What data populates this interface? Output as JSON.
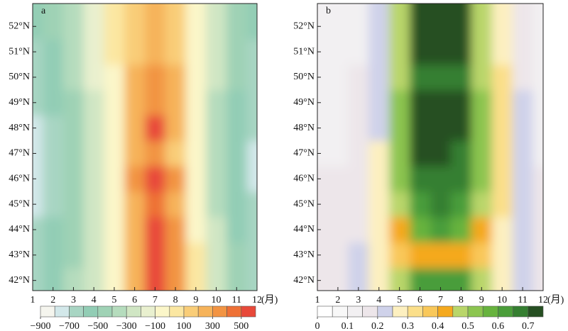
{
  "chart_data": [
    {
      "type": "contour",
      "panel_label": "a",
      "xlabel": "(月)",
      "x": [
        1,
        2,
        3,
        4,
        5,
        6,
        7,
        8,
        9,
        10,
        11,
        12
      ],
      "y": [
        42,
        43,
        44,
        45,
        46,
        47,
        48,
        49,
        50,
        51,
        52
      ],
      "z": [
        [
          -650,
          -550,
          -400,
          -250,
          -50,
          250,
          520,
          300,
          0,
          -300,
          -500,
          -650
        ],
        [
          -700,
          -600,
          -450,
          -250,
          -50,
          250,
          530,
          300,
          0,
          -300,
          -500,
          -650
        ],
        [
          -700,
          -600,
          -450,
          -250,
          -50,
          250,
          510,
          300,
          -50,
          -300,
          -550,
          -700
        ],
        [
          -750,
          -650,
          -500,
          -300,
          -50,
          250,
          480,
          250,
          -50,
          -350,
          -550,
          -700
        ],
        [
          -750,
          -650,
          -500,
          -300,
          -50,
          300,
          560,
          300,
          -50,
          -350,
          -600,
          -750
        ],
        [
          -800,
          -700,
          -500,
          -300,
          -100,
          200,
          380,
          150,
          -100,
          -400,
          -600,
          -750
        ],
        [
          -750,
          -650,
          -450,
          -250,
          -50,
          250,
          500,
          250,
          -50,
          -350,
          -550,
          -700
        ],
        [
          -700,
          -600,
          -450,
          -250,
          -50,
          200,
          380,
          200,
          -50,
          -350,
          -550,
          -700
        ],
        [
          -700,
          -600,
          -400,
          -200,
          -50,
          200,
          380,
          200,
          -50,
          -300,
          -500,
          -650
        ],
        [
          -650,
          -550,
          -400,
          -200,
          0,
          150,
          280,
          150,
          -50,
          -300,
          -500,
          -650
        ],
        [
          -600,
          -500,
          -350,
          -200,
          0,
          150,
          250,
          150,
          -50,
          -250,
          -450,
          -600
        ]
      ],
      "xlim": [
        1,
        12
      ],
      "ylim": [
        41.6,
        52.9
      ],
      "xticks": [
        1,
        2,
        3,
        4,
        5,
        6,
        7,
        8,
        9,
        10,
        11,
        12
      ],
      "yticks": [
        {
          "value": 42,
          "label": "42°N"
        },
        {
          "value": 43,
          "label": "43°N"
        },
        {
          "value": 44,
          "label": "44°N"
        },
        {
          "value": 45,
          "label": "45°N"
        },
        {
          "value": 46,
          "label": "46°N"
        },
        {
          "value": 47,
          "label": "47°N"
        },
        {
          "value": 48,
          "label": "48°N"
        },
        {
          "value": 49,
          "label": "49°N"
        },
        {
          "value": 50,
          "label": "50°N"
        },
        {
          "value": 51,
          "label": "51°N"
        },
        {
          "value": 52,
          "label": "52°N"
        }
      ],
      "colorbar": {
        "levels": [
          -900,
          -800,
          -700,
          -600,
          -500,
          -400,
          -300,
          -200,
          -100,
          0,
          100,
          200,
          300,
          400,
          500,
          600
        ],
        "colors": [
          "#f5f5ee",
          "#d3e8ea",
          "#a8d5c3",
          "#92cdb5",
          "#9fd2b5",
          "#b5dcbd",
          "#d0e6c4",
          "#e9f0cf",
          "#fbf6c9",
          "#fbe7a2",
          "#f9cd78",
          "#f6b35a",
          "#f29443",
          "#ee7136",
          "#e8493a"
        ],
        "ticks": [
          {
            "value": -900,
            "label": "−900"
          },
          {
            "value": -700,
            "label": "−700"
          },
          {
            "value": -500,
            "label": "−500"
          },
          {
            "value": -300,
            "label": "−300"
          },
          {
            "value": -100,
            "label": "−100"
          },
          100,
          300,
          500
        ]
      }
    },
    {
      "type": "contour",
      "panel_label": "b",
      "xlabel": "(月)",
      "x": [
        1,
        2,
        3,
        4,
        5,
        6,
        7,
        8,
        9,
        10,
        11,
        12
      ],
      "y": [
        42,
        43,
        44,
        45,
        46,
        47,
        48,
        49,
        50,
        51,
        52
      ],
      "z": [
        [
          0.15,
          0.15,
          0.2,
          0.25,
          0.45,
          0.6,
          0.6,
          0.6,
          0.45,
          0.25,
          0.2,
          0.15
        ],
        [
          0.15,
          0.15,
          0.2,
          0.25,
          0.35,
          0.4,
          0.4,
          0.4,
          0.35,
          0.25,
          0.2,
          0.15
        ],
        [
          0.15,
          0.15,
          0.15,
          0.25,
          0.4,
          0.55,
          0.6,
          0.55,
          0.4,
          0.25,
          0.2,
          0.15
        ],
        [
          0.15,
          0.15,
          0.15,
          0.25,
          0.45,
          0.6,
          0.65,
          0.6,
          0.45,
          0.3,
          0.2,
          0.15
        ],
        [
          0.15,
          0.15,
          0.15,
          0.25,
          0.5,
          0.65,
          0.65,
          0.65,
          0.5,
          0.3,
          0.2,
          0.15
        ],
        [
          0.1,
          0.1,
          0.15,
          0.25,
          0.5,
          0.7,
          0.7,
          0.65,
          0.5,
          0.3,
          0.2,
          0.1
        ],
        [
          0.1,
          0.1,
          0.15,
          0.2,
          0.5,
          0.72,
          0.72,
          0.7,
          0.5,
          0.3,
          0.2,
          0.1
        ],
        [
          0.1,
          0.1,
          0.15,
          0.2,
          0.5,
          0.72,
          0.72,
          0.7,
          0.5,
          0.3,
          0.2,
          0.1
        ],
        [
          0.1,
          0.1,
          0.15,
          0.2,
          0.45,
          0.65,
          0.65,
          0.65,
          0.45,
          0.3,
          0.15,
          0.1
        ],
        [
          0.1,
          0.1,
          0.1,
          0.2,
          0.45,
          0.72,
          0.72,
          0.7,
          0.45,
          0.25,
          0.15,
          0.1
        ],
        [
          0.1,
          0.1,
          0.1,
          0.2,
          0.45,
          0.72,
          0.72,
          0.72,
          0.45,
          0.25,
          0.15,
          0.1
        ]
      ],
      "xlim": [
        1,
        12
      ],
      "ylim": [
        41.6,
        52.9
      ],
      "xticks": [
        1,
        2,
        3,
        4,
        5,
        6,
        7,
        8,
        9,
        10,
        11,
        12
      ],
      "yticks": [
        {
          "value": 42,
          "label": "42°N"
        },
        {
          "value": 43,
          "label": "43°N"
        },
        {
          "value": 44,
          "label": "44°N"
        },
        {
          "value": 45,
          "label": "45°N"
        },
        {
          "value": 46,
          "label": "46°N"
        },
        {
          "value": 47,
          "label": "47°N"
        },
        {
          "value": 48,
          "label": "48°N"
        },
        {
          "value": 49,
          "label": "49°N"
        },
        {
          "value": 50,
          "label": "50°N"
        },
        {
          "value": 51,
          "label": "51°N"
        },
        {
          "value": 52,
          "label": "52°N"
        }
      ],
      "colorbar": {
        "levels": [
          0,
          0.05,
          0.1,
          0.15,
          0.2,
          0.25,
          0.3,
          0.35,
          0.4,
          0.45,
          0.5,
          0.55,
          0.6,
          0.65,
          0.7,
          0.75
        ],
        "colors": [
          "#ffffff",
          "#f8f8f8",
          "#f2f0f2",
          "#ede6ea",
          "#cfd2ea",
          "#fdf0c0",
          "#fbdf8a",
          "#f9c85a",
          "#f5a91e",
          "#b9d66a",
          "#8cc550",
          "#67b33e",
          "#4a9d3a",
          "#357f31",
          "#264f22"
        ],
        "ticks": [
          0,
          0.1,
          0.2,
          0.3,
          0.4,
          0.5,
          0.6,
          0.7
        ]
      }
    }
  ]
}
